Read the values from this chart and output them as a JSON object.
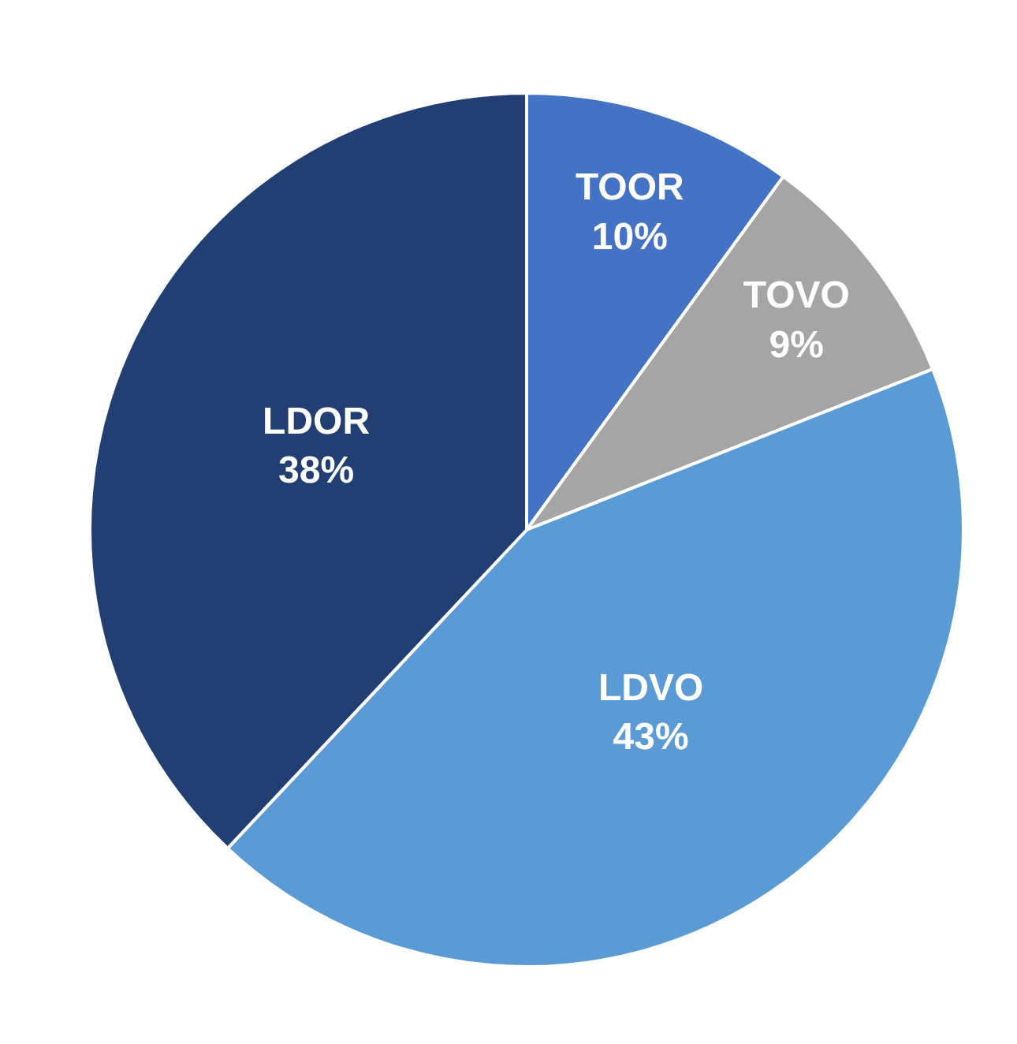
{
  "chart_data": {
    "type": "pie",
    "categories": [
      "TOOR",
      "TOVO",
      "LDVO",
      "LDOR"
    ],
    "values": [
      10,
      9,
      43,
      38
    ],
    "value_labels": [
      "10%",
      "9%",
      "43%",
      "38%"
    ],
    "colors": [
      "#4472c4",
      "#a5a5a5",
      "#5b9bd5",
      "#223f74"
    ]
  }
}
